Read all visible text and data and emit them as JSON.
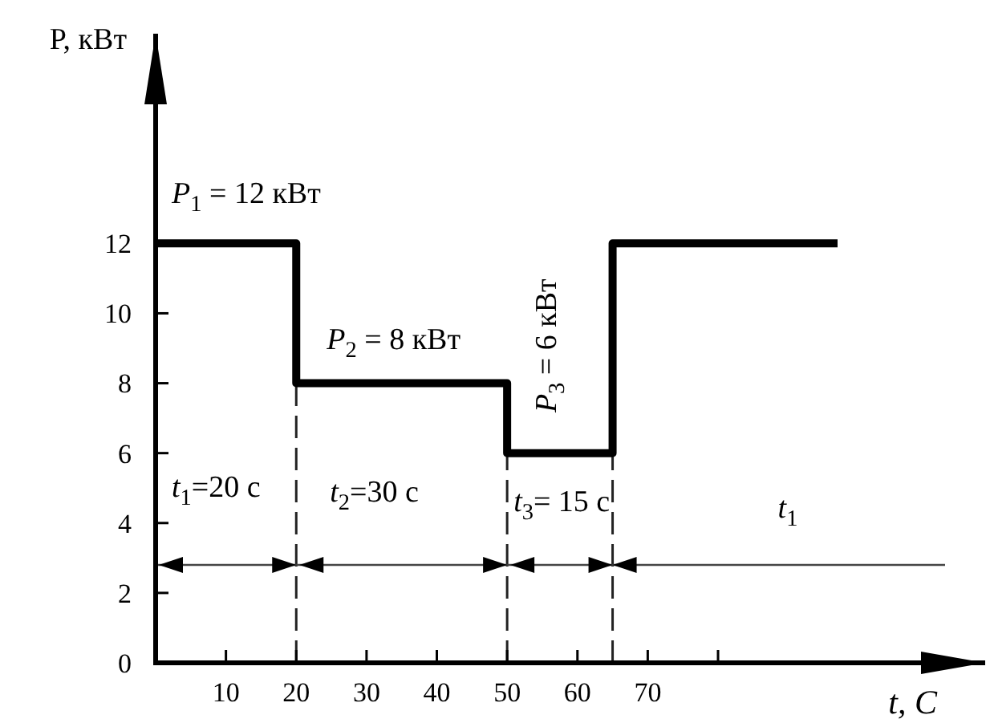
{
  "chart_data": {
    "type": "step",
    "xlabel": "t, С",
    "ylabel": "P, кВт",
    "x": [
      0,
      20,
      50,
      65,
      97
    ],
    "series": [
      {
        "color": "#000000",
        "values": [
          12,
          8,
          6,
          12,
          12
        ]
      }
    ],
    "xlim": [
      0,
      118
    ],
    "ylim": [
      0,
      18
    ],
    "xticks": [
      10,
      20,
      30,
      40,
      50,
      60,
      70,
      {
        "value": 80,
        "label": null
      }
    ],
    "yticks": [
      0,
      2,
      4,
      6,
      8,
      10,
      12
    ],
    "ref_lines": [
      {
        "axis": "x",
        "value": 20,
        "line_style": "dashed"
      },
      {
        "axis": "x",
        "value": 50,
        "line_style": "dashed"
      },
      {
        "axis": "x",
        "value": 65,
        "line_style": "dashed"
      }
    ],
    "annotations": [
      "P$_{1}$ = 12 кВт",
      "P$_{2}$ = 8 кВт",
      "P$_{3}$ = 6 кВт",
      "t$_{1}$=20 с",
      "t$_{2}$=30 с",
      "t$_{3}$= 15 с",
      "t$_{1}$"
    ],
    "line_style": "solid"
  }
}
